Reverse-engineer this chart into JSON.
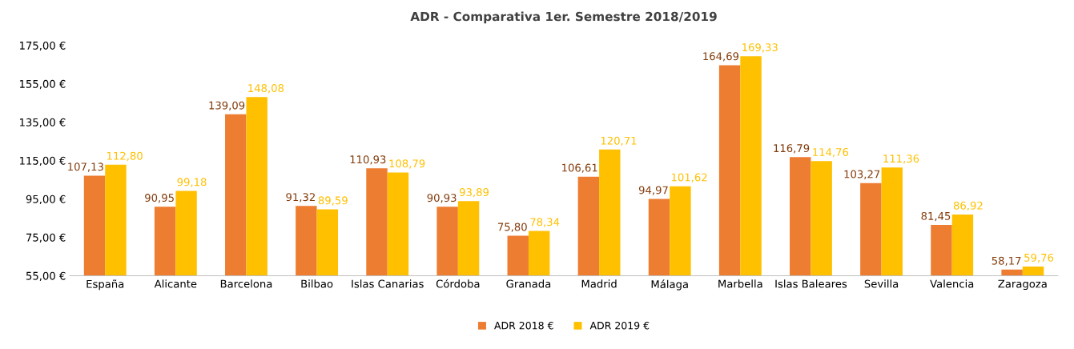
{
  "chart_data": {
    "type": "bar",
    "title": "ADR - Comparativa 1er. Semestre 2018/2019",
    "categories": [
      "España",
      "Alicante",
      "Barcelona",
      "Bilbao",
      "Islas Canarias",
      "Córdoba",
      "Granada",
      "Madrid",
      "Málaga",
      "Marbella",
      "Islas Baleares",
      "Sevilla",
      "Valencia",
      "Zaragoza"
    ],
    "series": [
      {
        "name": "ADR 2018 €",
        "color": "#ed7d31",
        "values": [
          107.13,
          90.95,
          139.09,
          91.32,
          110.93,
          90.93,
          75.8,
          106.61,
          94.97,
          164.69,
          116.79,
          103.27,
          81.45,
          58.17
        ],
        "value_labels": [
          "107,13",
          "90,95",
          "139,09",
          "91,32",
          "110,93",
          "90,93",
          "75,80",
          "106,61",
          "94,97",
          "164,69",
          "116,79",
          "103,27",
          "81,45",
          "58,17"
        ]
      },
      {
        "name": "ADR 2019 €",
        "color": "#ffc000",
        "values": [
          112.8,
          99.18,
          148.08,
          89.59,
          108.79,
          93.89,
          78.34,
          120.71,
          101.62,
          169.33,
          114.76,
          111.36,
          86.92,
          59.76
        ],
        "value_labels": [
          "112,80",
          "99,18",
          "148,08",
          "89,59",
          "108,79",
          "93,89",
          "78,34",
          "120,71",
          "101,62",
          "169,33",
          "114,76",
          "111,36",
          "86,92",
          "59,76"
        ]
      }
    ],
    "ylim": [
      55,
      175
    ],
    "yticks": [
      {
        "value": 55,
        "label": "55,00 €"
      },
      {
        "value": 75,
        "label": "75,00 €"
      },
      {
        "value": 95,
        "label": "95,00 €"
      },
      {
        "value": 115,
        "label": "115,00 €"
      },
      {
        "value": 135,
        "label": "135,00 €"
      },
      {
        "value": 155,
        "label": "155,00 €"
      },
      {
        "value": 175,
        "label": "175,00 €"
      }
    ],
    "grid": false,
    "legend": "bottom"
  }
}
